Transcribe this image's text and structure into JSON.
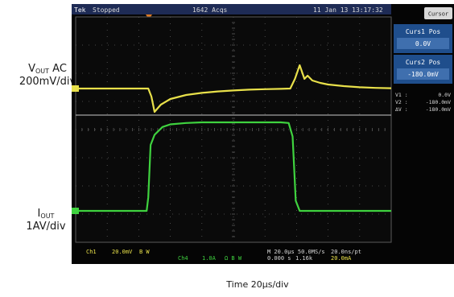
{
  "scope": {
    "brand": "Tek",
    "state": "Stopped",
    "acqs": "1642 Acqs",
    "datetime": "11 Jan 13 13:17:32",
    "menu_button": "Cursor"
  },
  "cursor_panel": {
    "curs1_title": "Curs1 Pos",
    "curs1_value": "0.0V",
    "curs2_title": "Curs2 Pos",
    "curs2_value": "-180.0mV",
    "readout": [
      {
        "label": "V1 :",
        "value": "0.0V"
      },
      {
        "label": "V2 :",
        "value": "-180.0mV"
      },
      {
        "label": "ΔV :",
        "value": "-180.0mV"
      }
    ]
  },
  "status_bar": {
    "ch1_label": "Ch1",
    "ch1_scale": "20.0mV",
    "ch1_bw": "B W",
    "ch3_label": "Ch4",
    "ch3_scale": "1.0A",
    "ch3_bw": "Ω B W",
    "timebase": "M 20.0μs 50.0MS/s",
    "trigger": "20.0mA",
    "record": "20.0ns/pt",
    "position": "0.000 s",
    "position2": "1.16k"
  },
  "labels": {
    "vout_main": "V",
    "vout_sub": "OUT",
    "vout_suffix": " AC",
    "vout_scale": "200mV/div",
    "iout_main": "I",
    "iout_sub": "OUT",
    "iout_scale": "1AV/div",
    "time_scale": "Time 20μs/div"
  },
  "colors": {
    "screen_bg": "#050505",
    "grid": "#5a5a5a",
    "voltage_trace": "#e8e04a",
    "current_trace": "#3fd23f",
    "cursor_line": "#c8c8c8",
    "header_bg": "#2a3a6a",
    "panel_bg": "#1f4e8c",
    "panel_value_bg": "#3f6fae",
    "trigger_marker": "#e07a20"
  },
  "chart_data": {
    "type": "line",
    "x_divisions": 10,
    "y_divisions": 8,
    "x_div_value": "20μs",
    "series": [
      {
        "name": "Ch1",
        "x": [
          0,
          4.6,
          4.8,
          5.0,
          5.4,
          6.0,
          7.0,
          8.0,
          9.0,
          10.0,
          11.0,
          12.0,
          13.0,
          13.6,
          13.9,
          14.2,
          14.5,
          14.7,
          15.0,
          15.5,
          16.0,
          17.0,
          18.0,
          19.0,
          20.0
        ],
        "y": [
          0,
          0,
          -0.5,
          -1.45,
          -1.0,
          -0.65,
          -0.4,
          -0.27,
          -0.18,
          -0.12,
          -0.07,
          -0.04,
          -0.02,
          0.0,
          0.6,
          1.45,
          0.6,
          0.8,
          0.5,
          0.35,
          0.25,
          0.15,
          0.08,
          0.04,
          0.02
        ]
      },
      {
        "name": "Ch4",
        "x": [
          0,
          4.5,
          4.6,
          4.75,
          5.0,
          5.5,
          6.0,
          7.0,
          8.0,
          9.0,
          10.0,
          11.0,
          12.0,
          13.0,
          13.5,
          13.75,
          13.95,
          14.2,
          16.0,
          20.0
        ],
        "y": [
          0,
          0,
          0.4,
          1.95,
          2.25,
          2.48,
          2.56,
          2.6,
          2.62,
          2.62,
          2.62,
          2.62,
          2.62,
          2.62,
          2.6,
          2.2,
          0.3,
          0,
          0,
          0
        ]
      }
    ]
  }
}
